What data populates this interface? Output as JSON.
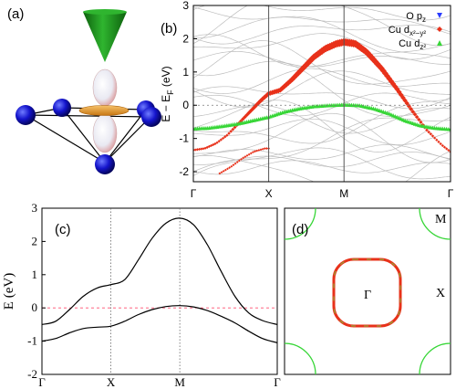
{
  "panels": {
    "a": {
      "label": "(a)"
    },
    "b": {
      "label": "(b)"
    },
    "c": {
      "label": "(c)"
    },
    "d": {
      "label": "(d)"
    }
  },
  "colors": {
    "gray_bands": "#bdbdbd",
    "o_pz": "#2a3cff",
    "cu_dx2y2": "#e8311a",
    "cu_dz2": "#37d637",
    "fermi_dash": "#ff4d6d",
    "sphere": "#1414cc",
    "cone": "#1f8a1f",
    "orbital_ring": "#e59a22"
  },
  "chart_data": [
    {
      "panel": "b",
      "type": "line",
      "ylabel_main": "E − E",
      "ylabel_sub": "F",
      "ylabel_unit": "(eV)",
      "ylim": [
        -2.3,
        3
      ],
      "yticks": [
        "3",
        "2",
        "1",
        "0",
        "-1",
        "-2"
      ],
      "xticks": [
        "Γ",
        "X",
        "M",
        "Γ"
      ],
      "k_positions": [
        0,
        1,
        2,
        3.414
      ],
      "legend": [
        {
          "base": "O p",
          "sub": "z",
          "sup": "",
          "marker": "triangle-down",
          "color": "#2a3cff"
        },
        {
          "base": "Cu d",
          "sub": "x²−y²",
          "sup": "",
          "marker": "diamond",
          "color": "#e8311a"
        },
        {
          "base": "Cu d",
          "sub": "z²",
          "sup": "",
          "marker": "triangle-up",
          "color": "#37d637"
        }
      ],
      "highlighted_bands": [
        {
          "name": "Cu dx2-y2 band",
          "color": "#e8311a",
          "k": [
            0,
            0.15,
            0.3,
            0.45,
            0.6,
            0.75,
            0.9,
            1.0,
            1.15,
            1.3,
            1.45,
            1.6,
            1.75,
            1.9,
            2.0,
            2.15,
            2.3,
            2.5,
            2.7,
            2.9,
            3.1,
            3.3,
            3.414
          ],
          "energy": [
            -1.35,
            -1.3,
            -1.15,
            -0.9,
            -0.55,
            -0.2,
            0.15,
            0.35,
            0.45,
            0.75,
            1.1,
            1.45,
            1.7,
            1.85,
            1.9,
            1.85,
            1.6,
            1.1,
            0.5,
            -0.15,
            -0.75,
            -1.2,
            -1.4
          ]
        },
        {
          "name": "Cu dz2 band",
          "color": "#37d637",
          "k": [
            0,
            0.2,
            0.4,
            0.6,
            0.8,
            1.0,
            1.2,
            1.4,
            1.6,
            1.8,
            2.0,
            2.2,
            2.4,
            2.6,
            2.8,
            3.0,
            3.2,
            3.414
          ],
          "energy": [
            -0.7,
            -0.68,
            -0.62,
            -0.55,
            -0.45,
            -0.35,
            -0.2,
            -0.1,
            -0.03,
            0.0,
            0.02,
            0.0,
            -0.1,
            -0.25,
            -0.45,
            -0.6,
            -0.68,
            -0.72
          ]
        },
        {
          "name": "Cu dx2-y2 lower band",
          "color": "#e8311a",
          "k": [
            0.35,
            0.5,
            0.65,
            0.8,
            0.95,
            1.0
          ],
          "energy": [
            -2.05,
            -1.85,
            -1.6,
            -1.4,
            -1.3,
            -1.3
          ]
        }
      ]
    },
    {
      "panel": "c",
      "type": "line",
      "ylabel": "E (eV)",
      "ylim": [
        -2,
        3
      ],
      "yticks": [
        "3",
        "2",
        "1",
        "0",
        "-1",
        "-2"
      ],
      "xticks": [
        "Γ",
        "X",
        "M",
        "Γ"
      ],
      "k_positions": [
        0,
        1,
        2,
        3.414
      ],
      "fermi_level": 0,
      "series": [
        {
          "name": "upper band",
          "k": [
            0,
            0.2,
            0.4,
            0.6,
            0.8,
            1.0,
            1.2,
            1.4,
            1.6,
            1.8,
            2.0,
            2.2,
            2.4,
            2.6,
            2.8,
            3.0,
            3.2,
            3.414
          ],
          "energy": [
            -0.5,
            -0.4,
            -0.05,
            0.35,
            0.6,
            0.7,
            0.85,
            1.45,
            2.1,
            2.55,
            2.7,
            2.5,
            1.9,
            1.1,
            0.35,
            -0.15,
            -0.38,
            -0.5
          ]
        },
        {
          "name": "lower band",
          "k": [
            0,
            0.2,
            0.4,
            0.6,
            0.8,
            1.0,
            1.2,
            1.4,
            1.6,
            1.8,
            2.0,
            2.2,
            2.4,
            2.6,
            2.8,
            3.0,
            3.2,
            3.414
          ],
          "energy": [
            -1.0,
            -0.92,
            -0.75,
            -0.62,
            -0.58,
            -0.55,
            -0.4,
            -0.2,
            -0.05,
            0.04,
            0.07,
            0.03,
            -0.08,
            -0.25,
            -0.45,
            -0.7,
            -0.92,
            -1.05
          ]
        }
      ]
    },
    {
      "panel": "d",
      "type": "diagram",
      "labels": {
        "center": "Γ",
        "corner": "M",
        "edge": "X"
      }
    }
  ]
}
